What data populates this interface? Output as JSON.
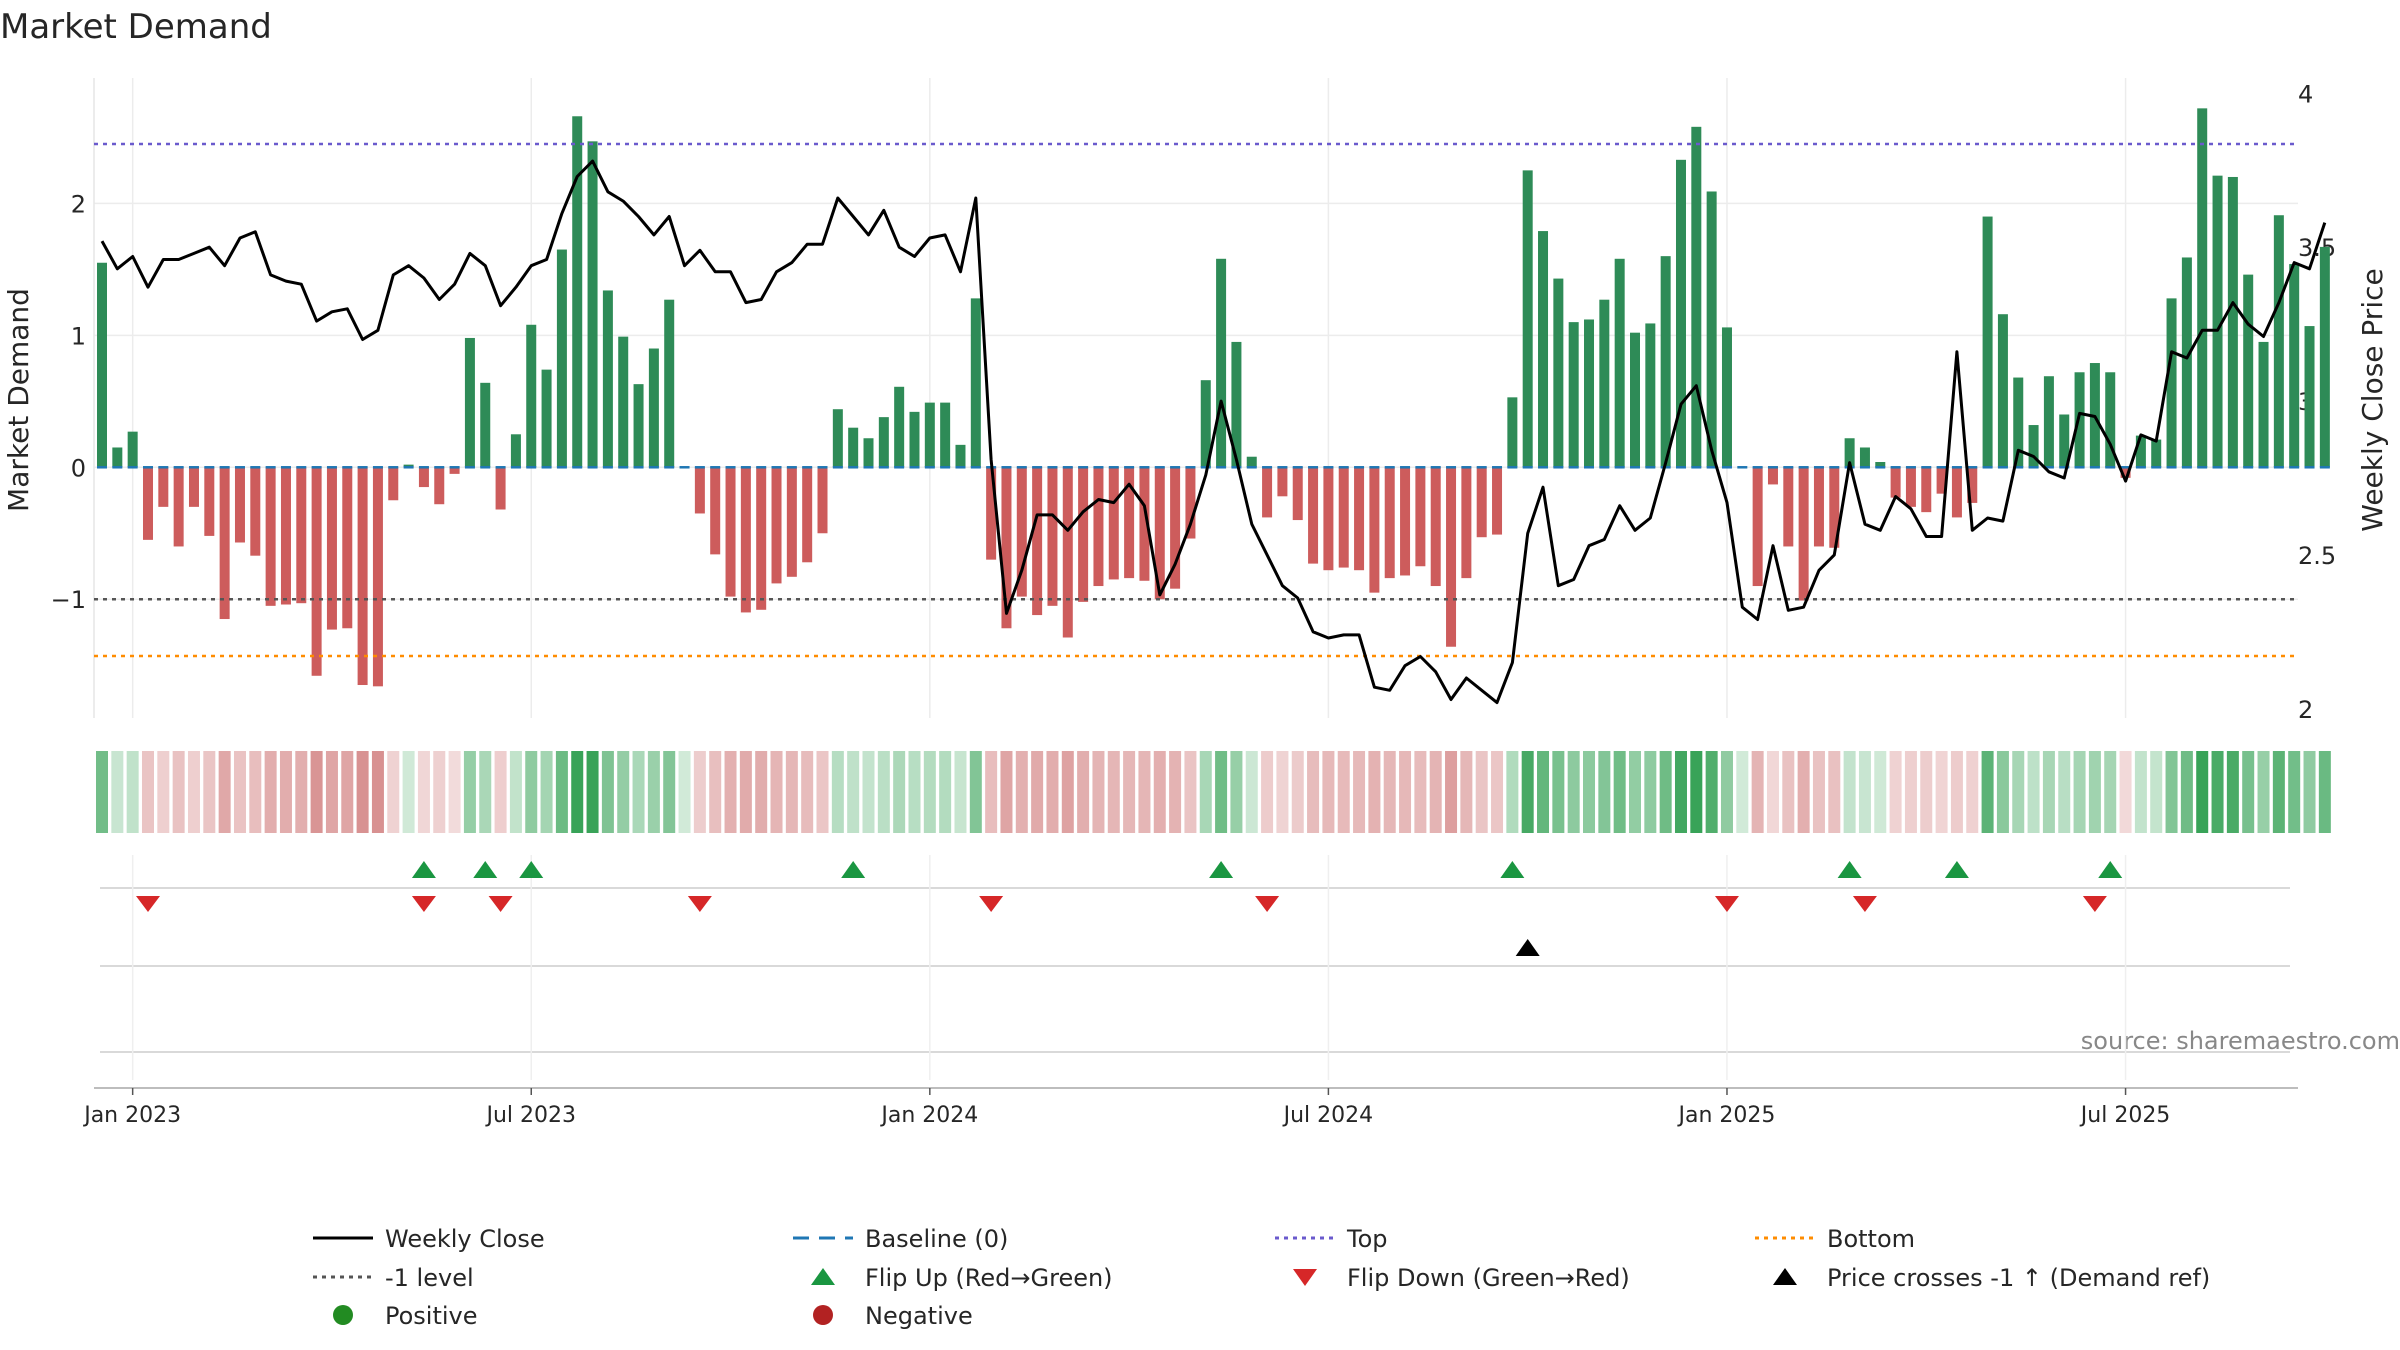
{
  "chart_data": {
    "type": "bar",
    "title": "Market Demand",
    "ylabel": "Market Demand",
    "y2label": "Weekly Close Price",
    "source": "source: sharemaestro.com",
    "ylim": [
      -1.9,
      2.95
    ],
    "y2lim": [
      1.97,
      4.05
    ],
    "yticks": [
      {
        "v": 2,
        "label": "2"
      },
      {
        "v": 1,
        "label": "1"
      },
      {
        "v": 0,
        "label": "0"
      },
      {
        "v": -1,
        "label": "−1"
      }
    ],
    "y2ticks": [
      {
        "v": 4,
        "label": "4"
      },
      {
        "v": 3.5,
        "label": "3.5"
      },
      {
        "v": 3,
        "label": "3"
      },
      {
        "v": 2.5,
        "label": "2.5"
      },
      {
        "v": 2,
        "label": "2"
      }
    ],
    "xticks": [
      {
        "i": 2,
        "label": "Jan 2023"
      },
      {
        "i": 28,
        "label": "Jul 2023"
      },
      {
        "i": 54,
        "label": "Jan 2024"
      },
      {
        "i": 80,
        "label": "Jul 2024"
      },
      {
        "i": 106,
        "label": "Jan 2025"
      },
      {
        "i": 132,
        "label": "Jul 2025"
      }
    ],
    "levels": {
      "top": 2.45,
      "minus_one": -1,
      "bottom": -1.43,
      "baseline": 0
    },
    "colors": {
      "positive": "#2e8b57",
      "negative": "#cd5c5c",
      "price": "#000000",
      "baseline": "#1f77b4",
      "top": "#6a5acd",
      "minus_one": "#555555",
      "bottom": "#ff8c00",
      "flip_up": "#1a9641",
      "flip_down": "#d62728",
      "cross": "#000000"
    },
    "demand": [
      1.55,
      0.15,
      0.27,
      -0.55,
      -0.3,
      -0.6,
      -0.3,
      -0.52,
      -1.15,
      -0.57,
      -0.67,
      -1.05,
      -1.04,
      -1.03,
      -1.58,
      -1.23,
      -1.22,
      -1.65,
      -1.66,
      -0.25,
      0.02,
      -0.15,
      -0.28,
      -0.05,
      0.98,
      0.64,
      -0.32,
      0.25,
      1.08,
      0.74,
      1.65,
      2.66,
      2.47,
      1.34,
      0.99,
      0.63,
      0.9,
      1.27,
      0,
      -0.35,
      -0.66,
      -0.98,
      -1.1,
      -1.08,
      -0.88,
      -0.83,
      -0.72,
      -0.5,
      0.44,
      0.3,
      0.22,
      0.38,
      0.61,
      0.42,
      0.49,
      0.49,
      0.17,
      1.28,
      -0.7,
      -1.22,
      -0.98,
      -1.12,
      -1.05,
      -1.29,
      -1.02,
      -0.9,
      -0.85,
      -0.84,
      -0.86,
      -1,
      -0.92,
      -0.54,
      0.66,
      1.58,
      0.95,
      0.08,
      -0.38,
      -0.22,
      -0.4,
      -0.73,
      -0.78,
      -0.76,
      -0.78,
      -0.95,
      -0.84,
      -0.82,
      -0.75,
      -0.9,
      -1.36,
      -0.84,
      -0.53,
      -0.51,
      0.53,
      2.25,
      1.79,
      1.43,
      1.1,
      1.12,
      1.27,
      1.58,
      1.02,
      1.09,
      1.6,
      2.33,
      2.58,
      2.09,
      1.06,
      0,
      -0.9,
      -0.13,
      -0.6,
      -1.01,
      -0.6,
      -0.61,
      0.22,
      0.15,
      0.04,
      -0.23,
      -0.3,
      -0.34,
      -0.2,
      -0.38,
      -0.27,
      1.9,
      1.16,
      0.68,
      0.32,
      0.69,
      0.4,
      0.72,
      0.79,
      0.72,
      -0.08,
      0.24,
      0.21,
      1.28,
      1.59,
      2.72,
      2.21,
      2.2,
      1.46,
      0.95,
      1.91,
      1.54,
      1.07,
      1.67
    ],
    "price": [
      3.52,
      3.43,
      3.47,
      3.37,
      3.46,
      3.46,
      3.48,
      3.5,
      3.44,
      3.53,
      3.55,
      3.41,
      3.39,
      3.38,
      3.26,
      3.29,
      3.3,
      3.2,
      3.23,
      3.41,
      3.44,
      3.4,
      3.33,
      3.38,
      3.48,
      3.44,
      3.31,
      3.37,
      3.44,
      3.46,
      3.61,
      3.73,
      3.78,
      3.68,
      3.65,
      3.6,
      3.54,
      3.6,
      3.44,
      3.49,
      3.42,
      3.42,
      3.32,
      3.33,
      3.42,
      3.45,
      3.51,
      3.51,
      3.66,
      3.6,
      3.54,
      3.62,
      3.5,
      3.47,
      3.53,
      3.54,
      3.42,
      3.66,
      2.81,
      2.31,
      2.45,
      2.63,
      2.63,
      2.58,
      2.64,
      2.68,
      2.67,
      2.73,
      2.66,
      2.37,
      2.47,
      2.6,
      2.76,
      3,
      2.81,
      2.6,
      2.5,
      2.4,
      2.36,
      2.25,
      2.23,
      2.24,
      2.24,
      2.07,
      2.06,
      2.14,
      2.17,
      2.12,
      2.03,
      2.1,
      2.06,
      2.02,
      2.15,
      2.57,
      2.72,
      2.4,
      2.42,
      2.53,
      2.55,
      2.66,
      2.58,
      2.62,
      2.8,
      2.99,
      3.05,
      2.84,
      2.67,
      2.33,
      2.29,
      2.53,
      2.32,
      2.33,
      2.45,
      2.5,
      2.8,
      2.6,
      2.58,
      2.69,
      2.65,
      2.56,
      2.56,
      3.16,
      2.58,
      2.62,
      2.61,
      2.84,
      2.82,
      2.77,
      2.75,
      2.96,
      2.95,
      2.86,
      2.74,
      2.89,
      2.87,
      3.16,
      3.14,
      3.23,
      3.23,
      3.32,
      3.25,
      3.21,
      3.32,
      3.45,
      3.43,
      3.58
    ],
    "heat_strip": {
      "note": "Colour of each tile follows the weekly demand sign and magnitude"
    },
    "flip_up_idx": [
      21,
      25,
      28,
      49,
      73,
      92,
      114,
      121,
      131
    ],
    "flip_down_idx": [
      3,
      21,
      26,
      39,
      58,
      76,
      106,
      115,
      130
    ],
    "cross_idx": [
      93
    ],
    "legend": [
      {
        "key": "price",
        "label": "Weekly Close",
        "kind": "line"
      },
      {
        "key": "baseline",
        "label": "Baseline (0)",
        "kind": "dash"
      },
      {
        "key": "top",
        "label": "Top",
        "kind": "dot"
      },
      {
        "key": "bottom",
        "label": "Bottom",
        "kind": "dot"
      },
      {
        "key": "minus_one",
        "label": "-1 level",
        "kind": "dot"
      },
      {
        "key": "flip_up",
        "label": "Flip Up (Red→Green)",
        "kind": "up"
      },
      {
        "key": "flip_down",
        "label": "Flip Down (Green→Red)",
        "kind": "down"
      },
      {
        "key": "cross",
        "label": "Price crosses -1 ↑ (Demand ref)",
        "kind": "up"
      },
      {
        "key": "positive_dot",
        "label": "Positive",
        "kind": "circle",
        "color": "#228b22"
      },
      {
        "key": "negative_dot",
        "label": "Negative",
        "kind": "circle",
        "color": "#b22222"
      }
    ]
  }
}
